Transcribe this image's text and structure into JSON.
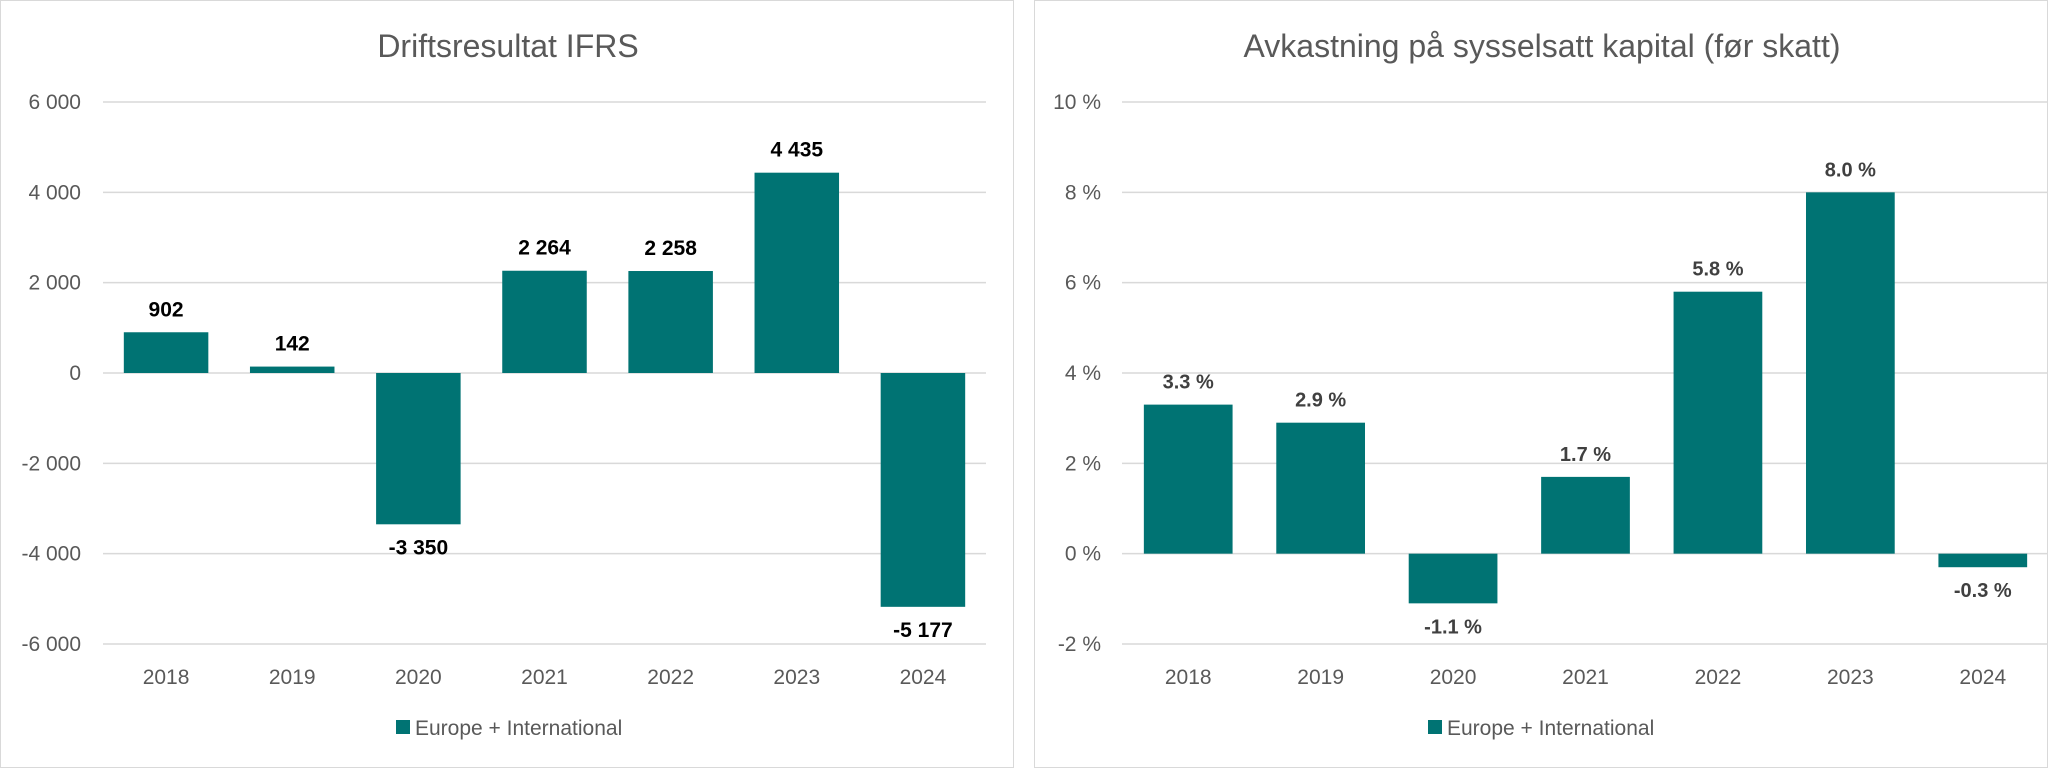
{
  "bar_color": "#007373",
  "chart_data": [
    {
      "type": "bar",
      "title": "Driftsresultat IFRS",
      "categories": [
        "2018",
        "2019",
        "2020",
        "2021",
        "2022",
        "2023",
        "2024"
      ],
      "series": [
        {
          "name": "Europe + International",
          "values": [
            902,
            142,
            -3350,
            2264,
            2258,
            4435,
            -5177
          ],
          "labels": [
            "902",
            "142",
            "-3 350",
            "2 264",
            "2 258",
            "4 435",
            "-5 177"
          ]
        }
      ],
      "ylim": [
        -6000,
        6000
      ],
      "yticks": [
        6000,
        4000,
        2000,
        0,
        -2000,
        -4000,
        -6000
      ],
      "ytick_labels": [
        "6 000",
        "4 000",
        "2 000",
        "0",
        "-2 000",
        "-4 000",
        "-6 000"
      ],
      "grid": true,
      "legend_position": "bottom"
    },
    {
      "type": "bar",
      "title": "Avkastning på sysselsatt kapital (før skatt)",
      "categories": [
        "2018",
        "2019",
        "2020",
        "2021",
        "2022",
        "2023",
        "2024"
      ],
      "series": [
        {
          "name": "Europe + International",
          "values": [
            3.3,
            2.9,
            -1.1,
            1.7,
            5.8,
            8.0,
            -0.3
          ],
          "labels": [
            "3.3 %",
            "2.9 %",
            "-1.1 %",
            "1.7 %",
            "5.8 %",
            "8.0 %",
            "-0.3 %"
          ]
        }
      ],
      "ylim": [
        -2,
        10
      ],
      "yticks": [
        10,
        8,
        6,
        4,
        2,
        0,
        -2
      ],
      "ytick_labels": [
        "10 %",
        "8 %",
        "6 %",
        "4 %",
        "2 %",
        "0 %",
        "-2 %"
      ],
      "grid": true,
      "legend_position": "bottom"
    }
  ]
}
